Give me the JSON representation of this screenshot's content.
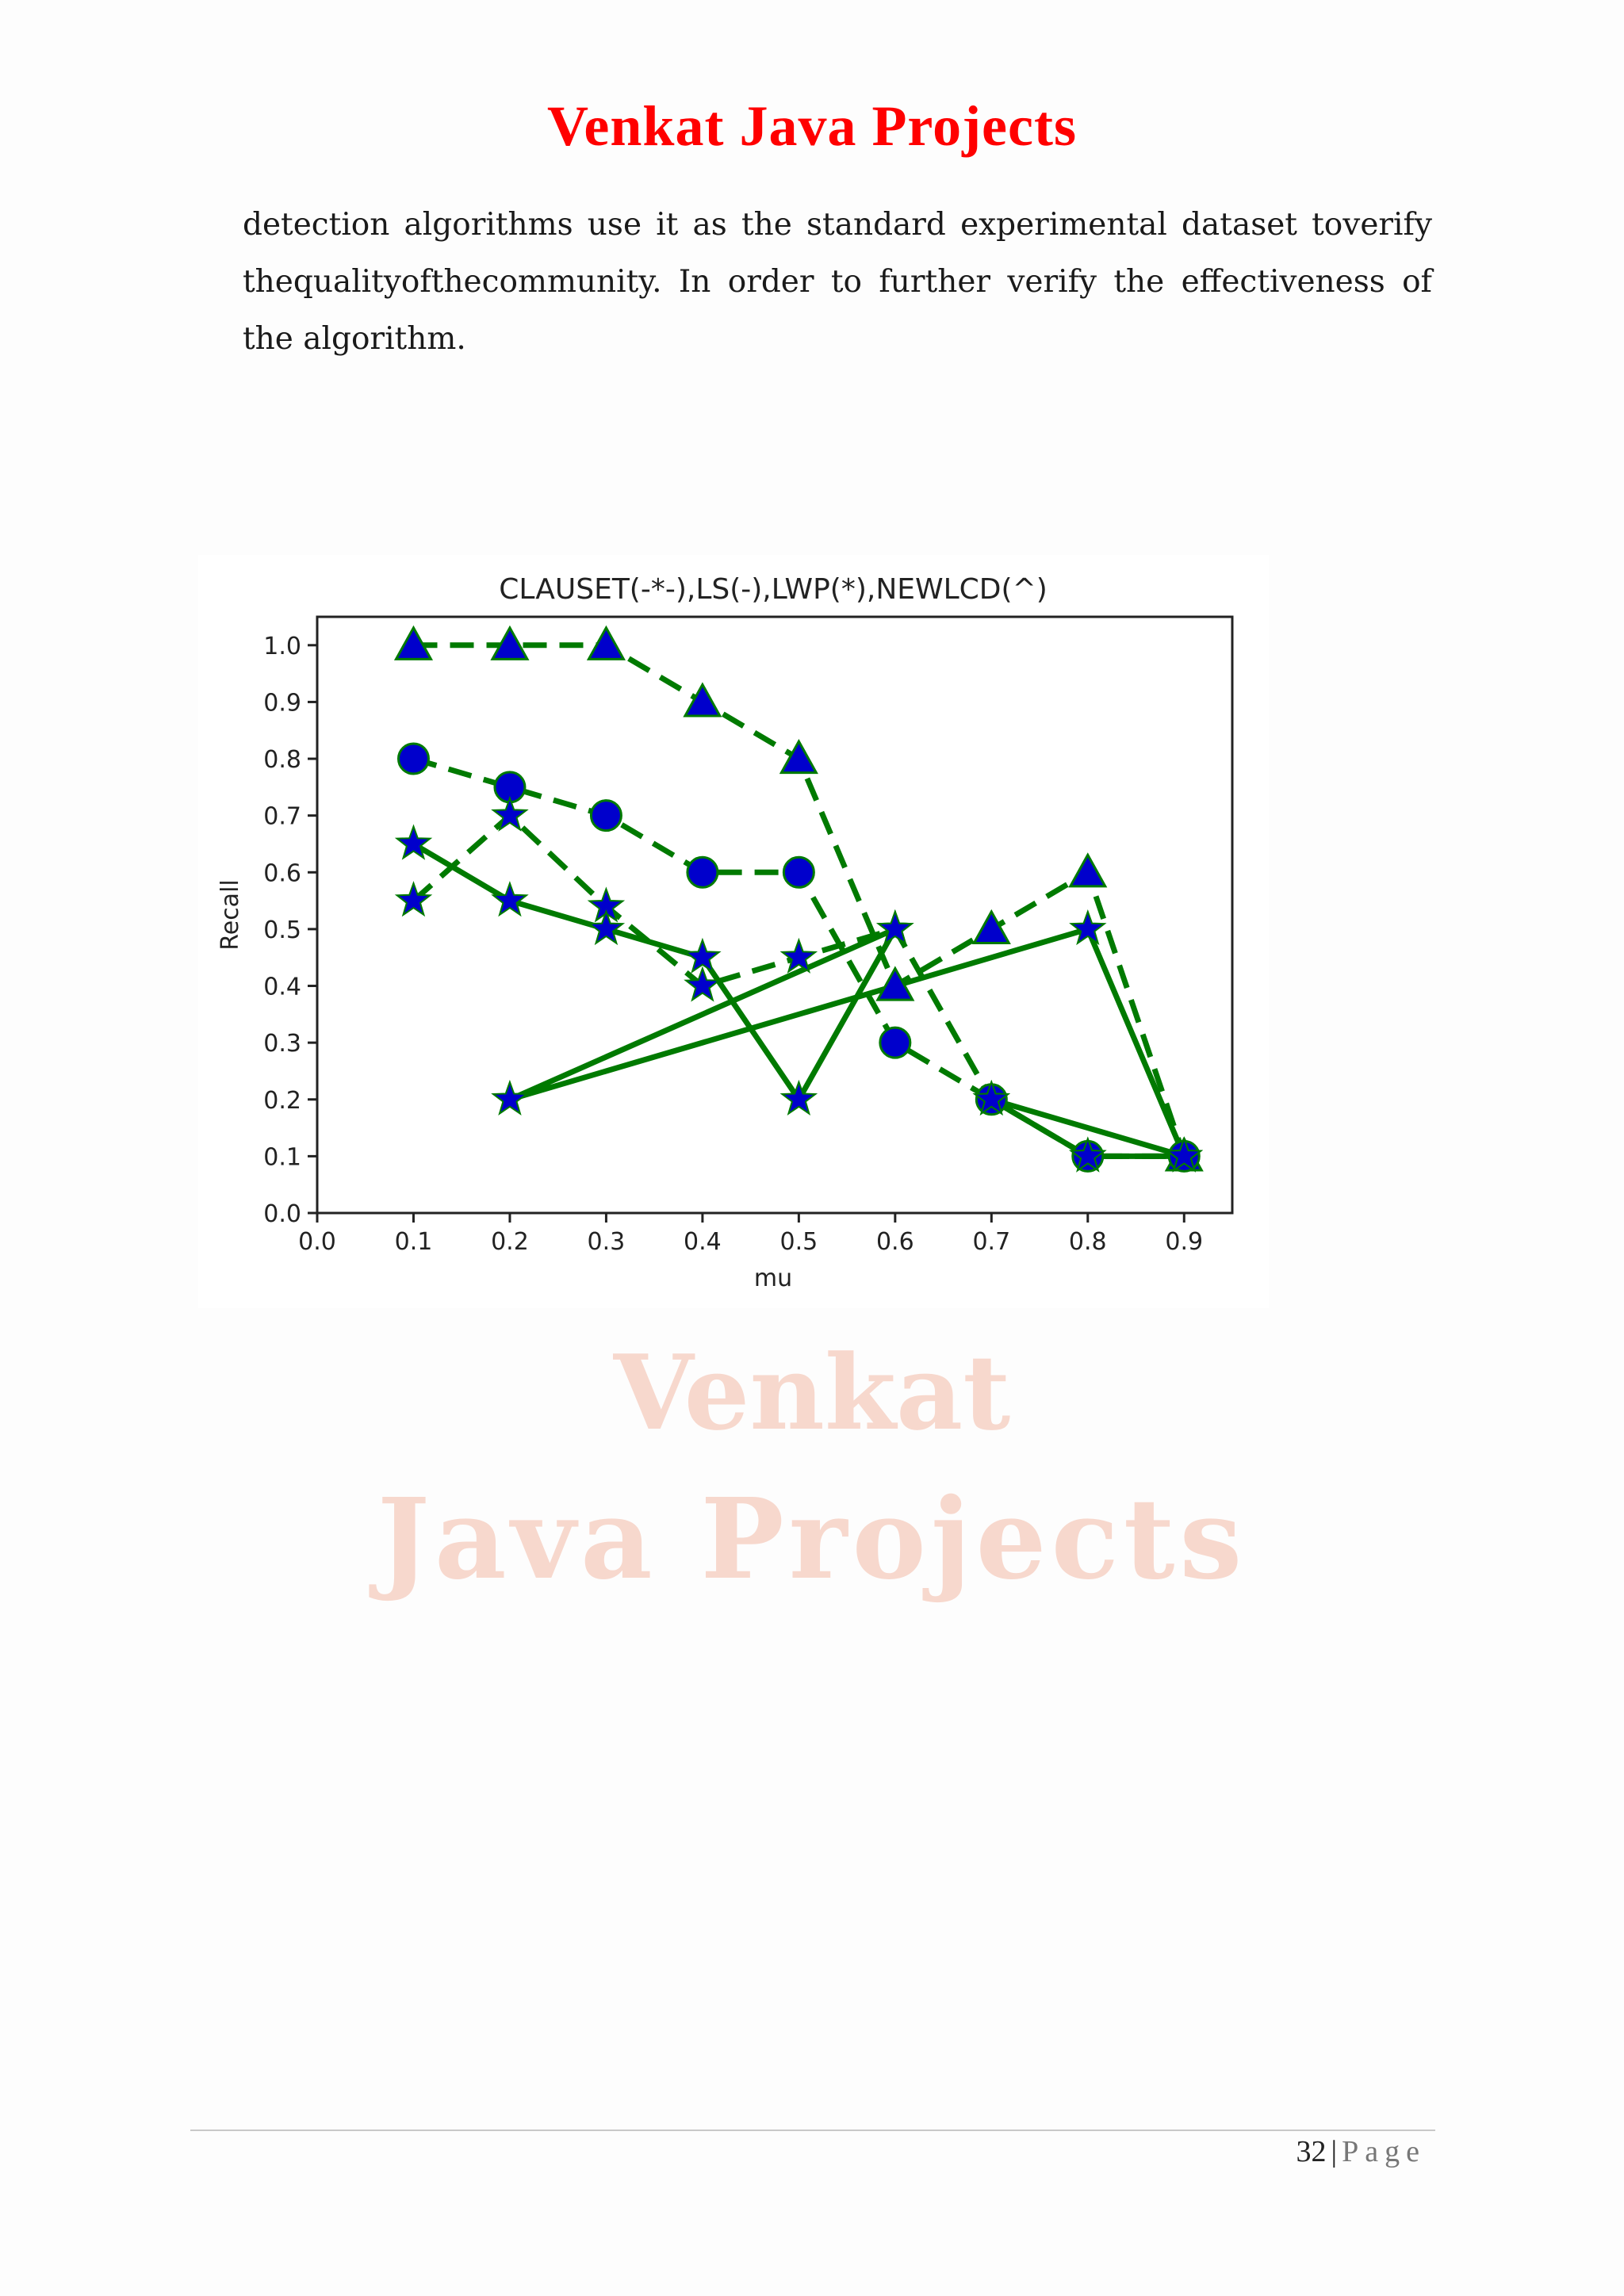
{
  "header": {
    "title": "Venkat Java Projects"
  },
  "body_text": "detection algorithms use it as the standard experimental dataset toverify thequalityofthecommunity. In order to further verify the effectiveness of the algorithm.",
  "watermark": {
    "line1": "Venkat",
    "line2": "Java Projects"
  },
  "footer": {
    "page_number": "32",
    "separator": "|",
    "page_label": "Page"
  },
  "colors": {
    "header": "#ff0000",
    "line": "#007a00",
    "marker": "#0000cc"
  },
  "chart_data": {
    "type": "line",
    "title": "CLAUSET(-*-),LS(-),LWP(*),NEWLCD(^)",
    "xlabel": "mu",
    "ylabel": "Recall",
    "xlim": [
      0.0,
      0.95
    ],
    "ylim": [
      0.0,
      1.05
    ],
    "xticks": [
      "0.0",
      "0.1",
      "0.2",
      "0.3",
      "0.4",
      "0.5",
      "0.6",
      "0.7",
      "0.8",
      "0.9"
    ],
    "yticks": [
      "0.0",
      "0.1",
      "0.2",
      "0.3",
      "0.4",
      "0.5",
      "0.6",
      "0.7",
      "0.8",
      "0.9",
      "1.0"
    ],
    "grid": false,
    "series": [
      {
        "line": "dashed",
        "marker": "triangle",
        "x": [
          0.1,
          0.2,
          0.3,
          0.4,
          0.5,
          0.6,
          0.7,
          0.8,
          0.9
        ],
        "y": [
          1.0,
          1.0,
          1.0,
          0.9,
          0.8,
          0.4,
          0.5,
          0.6,
          0.1
        ]
      },
      {
        "line": "dashed",
        "marker": "circle",
        "x": [
          0.1,
          0.2,
          0.3,
          0.4,
          0.5,
          0.6,
          0.7,
          0.8,
          0.9
        ],
        "y": [
          0.8,
          0.75,
          0.7,
          0.6,
          0.6,
          0.3,
          0.2,
          0.1,
          0.1
        ]
      },
      {
        "line": "dashed",
        "marker": "star",
        "x": [
          0.1,
          0.2,
          0.3,
          0.4,
          0.5,
          0.6,
          0.7,
          0.8,
          0.9
        ],
        "y": [
          0.55,
          0.7,
          0.54,
          0.4,
          0.45,
          0.5,
          0.2,
          0.1,
          0.1
        ]
      },
      {
        "line": "solid",
        "marker": "star",
        "x": [
          0.1,
          0.2,
          0.3,
          0.4,
          0.5,
          0.6,
          0.2,
          0.8,
          0.9,
          0.7,
          0.8,
          0.9
        ],
        "y": [
          0.65,
          0.55,
          0.5,
          0.45,
          0.2,
          0.5,
          0.2,
          0.5,
          0.1,
          0.2,
          0.1,
          0.1
        ]
      }
    ]
  }
}
